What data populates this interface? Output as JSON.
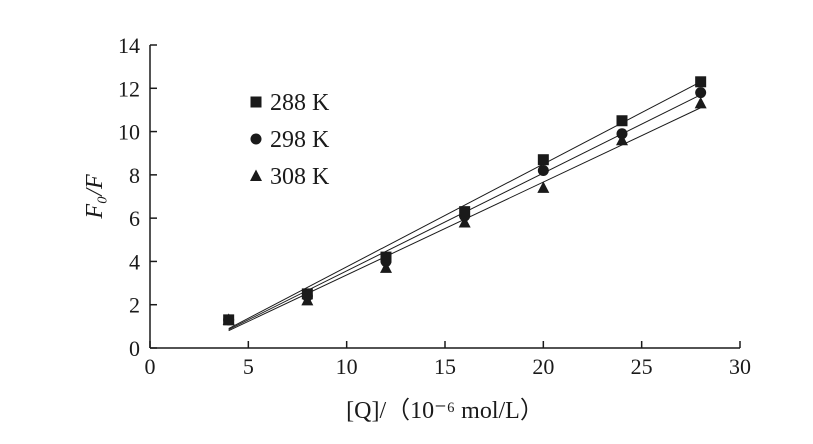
{
  "chart_data": {
    "type": "scatter",
    "xlabel": "[Q]/（10⁻⁶ mol/L）",
    "ylabel": "F₀/F",
    "xlim": [
      0,
      30
    ],
    "ylim": [
      0,
      14
    ],
    "x_ticks": [
      0,
      5,
      10,
      15,
      20,
      25,
      30
    ],
    "y_ticks": [
      0,
      2,
      4,
      6,
      8,
      10,
      12,
      14
    ],
    "x_tick_labels": [
      "0",
      "5",
      "10",
      "15",
      "20",
      "25",
      "30"
    ],
    "y_tick_labels": [
      "0",
      "2",
      "4",
      "6",
      "8",
      "10",
      "12",
      "14"
    ],
    "grid": false,
    "legend_position": "top-left",
    "series": [
      {
        "name": "288 K",
        "marker": "square",
        "x": [
          4,
          8,
          12,
          16,
          20,
          24,
          28
        ],
        "y": [
          1.3,
          2.5,
          4.2,
          6.3,
          8.7,
          10.5,
          12.3
        ],
        "fit_line": {
          "x": [
            4,
            28
          ],
          "y": [
            0.9,
            12.3
          ]
        }
      },
      {
        "name": "298 K",
        "marker": "circle",
        "x": [
          4,
          8,
          12,
          16,
          20,
          24,
          28
        ],
        "y": [
          1.3,
          2.4,
          4.0,
          6.1,
          8.2,
          9.9,
          11.8
        ],
        "fit_line": {
          "x": [
            4,
            28
          ],
          "y": [
            0.85,
            11.7
          ]
        }
      },
      {
        "name": "308 K",
        "marker": "triangle",
        "x": [
          4,
          8,
          12,
          16,
          20,
          24,
          28
        ],
        "y": [
          1.3,
          2.2,
          3.7,
          5.8,
          7.4,
          9.6,
          11.3
        ],
        "fit_line": {
          "x": [
            4,
            28
          ],
          "y": [
            0.8,
            11.1
          ]
        }
      }
    ],
    "colors": {
      "ink": "#1a1a1a",
      "background": "#ffffff"
    }
  }
}
